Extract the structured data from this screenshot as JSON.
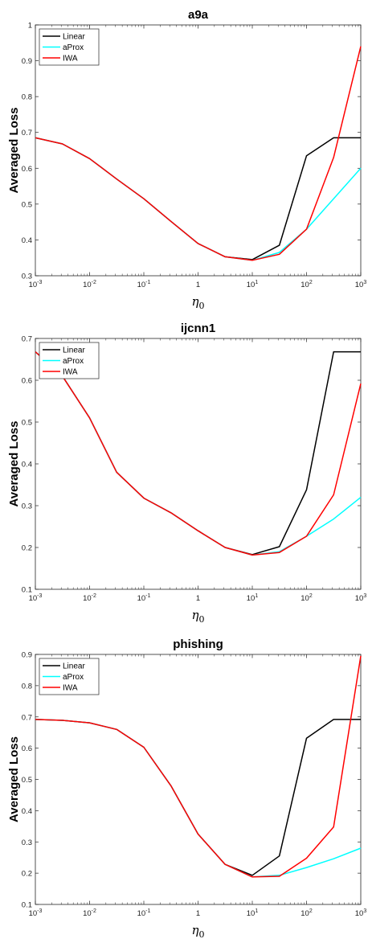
{
  "colors": {
    "Linear": "#000000",
    "aProx": "#00ffff",
    "IWA": "#ff0000"
  },
  "chart_data": [
    {
      "type": "line",
      "title": "a9a",
      "ylabel": "Averaged Loss",
      "xlabel": "η0",
      "xscale": "log",
      "xlim": [
        0.001,
        1000
      ],
      "ylim": [
        0.3,
        1.0
      ],
      "yticks": [
        0.3,
        0.4,
        0.5,
        0.6,
        0.7,
        0.8,
        0.9,
        1
      ],
      "ytick_labels": [
        "0.3",
        "0.4",
        "0.5",
        "0.6",
        "0.7",
        "0.8",
        "0.9",
        "1"
      ],
      "xticks": [
        0.001,
        0.01,
        0.1,
        1,
        10,
        100,
        1000
      ],
      "xtick_labels": [
        [
          "10",
          "-3"
        ],
        [
          "10",
          "-2"
        ],
        [
          "10",
          "-1"
        ],
        [
          "1",
          ""
        ],
        [
          "10",
          "1"
        ],
        [
          "10",
          "2"
        ],
        [
          "10",
          "3"
        ]
      ],
      "legend_position": "top-left",
      "x": [
        0.001,
        0.00316,
        0.01,
        0.0316,
        0.1,
        0.316,
        1,
        3.16,
        10,
        31.6,
        100,
        316,
        1000
      ],
      "series": [
        {
          "name": "Linear",
          "values": [
            0.685,
            0.668,
            0.627,
            0.57,
            0.515,
            0.452,
            0.39,
            0.353,
            0.345,
            0.385,
            0.635,
            0.685,
            0.685
          ]
        },
        {
          "name": "aProx",
          "values": [
            0.685,
            0.668,
            0.627,
            0.57,
            0.515,
            0.452,
            0.39,
            0.353,
            0.343,
            0.365,
            0.43,
            0.515,
            0.6
          ]
        },
        {
          "name": "IWA",
          "values": [
            0.685,
            0.668,
            0.627,
            0.57,
            0.515,
            0.452,
            0.39,
            0.353,
            0.343,
            0.36,
            0.43,
            0.63,
            0.94
          ]
        }
      ]
    },
    {
      "type": "line",
      "title": "ijcnn1",
      "ylabel": "Averaged Loss",
      "xlabel": "η0",
      "xscale": "log",
      "xlim": [
        0.001,
        1000
      ],
      "ylim": [
        0.1,
        0.7
      ],
      "yticks": [
        0.1,
        0.2,
        0.3,
        0.4,
        0.5,
        0.6,
        0.7
      ],
      "ytick_labels": [
        "0.1",
        "0.2",
        "0.3",
        "0.4",
        "0.5",
        "0.6",
        "0.7"
      ],
      "xticks": [
        0.001,
        0.01,
        0.1,
        1,
        10,
        100,
        1000
      ],
      "xtick_labels": [
        [
          "10",
          "-3"
        ],
        [
          "10",
          "-2"
        ],
        [
          "10",
          "-1"
        ],
        [
          "1",
          ""
        ],
        [
          "10",
          "1"
        ],
        [
          "10",
          "2"
        ],
        [
          "10",
          "3"
        ]
      ],
      "legend_position": "top-left",
      "x": [
        0.001,
        0.00316,
        0.01,
        0.0316,
        0.1,
        0.316,
        1,
        3.16,
        10,
        31.6,
        100,
        316,
        1000
      ],
      "series": [
        {
          "name": "Linear",
          "values": [
            0.668,
            0.61,
            0.51,
            0.38,
            0.318,
            0.283,
            0.24,
            0.2,
            0.183,
            0.202,
            0.338,
            0.668,
            0.668
          ]
        },
        {
          "name": "aProx",
          "values": [
            0.668,
            0.61,
            0.51,
            0.38,
            0.318,
            0.283,
            0.24,
            0.2,
            0.182,
            0.19,
            0.227,
            0.268,
            0.32
          ]
        },
        {
          "name": "IWA",
          "values": [
            0.668,
            0.61,
            0.51,
            0.38,
            0.318,
            0.283,
            0.24,
            0.2,
            0.182,
            0.188,
            0.227,
            0.326,
            0.592
          ]
        }
      ]
    },
    {
      "type": "line",
      "title": "phishing",
      "ylabel": "Averaged Loss",
      "xlabel": "η0",
      "xscale": "log",
      "xlim": [
        0.001,
        1000
      ],
      "ylim": [
        0.1,
        0.9
      ],
      "yticks": [
        0.1,
        0.2,
        0.3,
        0.4,
        0.5,
        0.6,
        0.7,
        0.8,
        0.9
      ],
      "ytick_labels": [
        "0.1",
        "0.2",
        "0.3",
        "0.4",
        "0.5",
        "0.6",
        "0.7",
        "0.8",
        "0.9"
      ],
      "xticks": [
        0.001,
        0.01,
        0.1,
        1,
        10,
        100,
        1000
      ],
      "xtick_labels": [
        [
          "10",
          "-3"
        ],
        [
          "10",
          "-2"
        ],
        [
          "10",
          "-1"
        ],
        [
          "1",
          ""
        ],
        [
          "10",
          "1"
        ],
        [
          "10",
          "2"
        ],
        [
          "10",
          "3"
        ]
      ],
      "legend_position": "top-left",
      "x": [
        0.001,
        0.00316,
        0.01,
        0.0316,
        0.1,
        0.316,
        1,
        3.16,
        10,
        31.6,
        100,
        316,
        1000
      ],
      "series": [
        {
          "name": "Linear",
          "values": [
            0.692,
            0.689,
            0.681,
            0.66,
            0.603,
            0.48,
            0.325,
            0.228,
            0.193,
            0.255,
            0.632,
            0.692,
            0.692
          ]
        },
        {
          "name": "aProx",
          "values": [
            0.692,
            0.689,
            0.681,
            0.66,
            0.603,
            0.48,
            0.325,
            0.228,
            0.188,
            0.193,
            0.218,
            0.246,
            0.28
          ]
        },
        {
          "name": "IWA",
          "values": [
            0.692,
            0.689,
            0.681,
            0.66,
            0.603,
            0.48,
            0.325,
            0.228,
            0.188,
            0.19,
            0.248,
            0.348,
            0.895
          ]
        }
      ]
    }
  ]
}
